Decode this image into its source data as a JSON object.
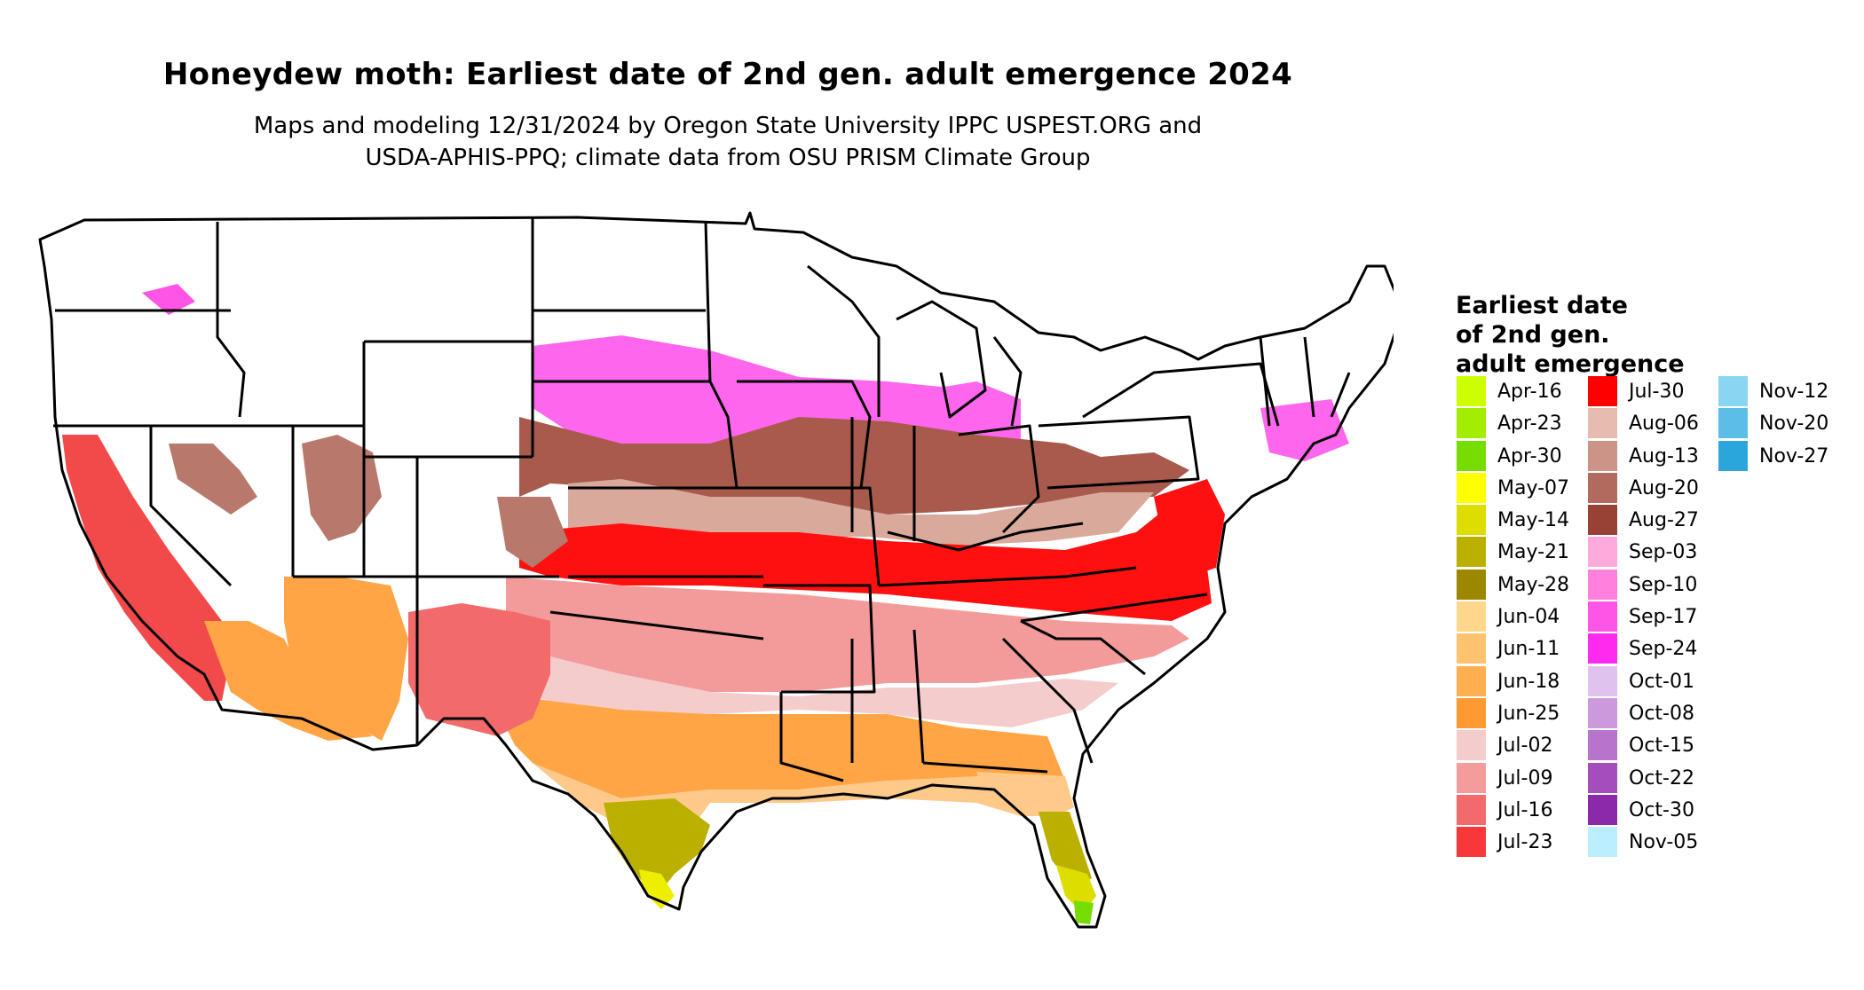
{
  "title": "Honeydew moth: Earliest date of 2nd gen. adult emergence 2024",
  "subtitle_line1": "Maps and modeling 12/31/2024 by Oregon State University IPPC USPEST.ORG and",
  "subtitle_line2": "USDA-APHIS-PPQ; climate data from OSU PRISM Climate Group",
  "legend": {
    "title_lines": [
      "Earliest date",
      "of 2nd gen.",
      "adult emergence"
    ],
    "columns": [
      [
        {
          "label": "Apr-16",
          "color": "#ccff00"
        },
        {
          "label": "Apr-23",
          "color": "#a3ee00"
        },
        {
          "label": "Apr-30",
          "color": "#77dd00"
        },
        {
          "label": "May-07",
          "color": "#ffff00"
        },
        {
          "label": "May-14",
          "color": "#dddd00"
        },
        {
          "label": "May-21",
          "color": "#bbb000"
        },
        {
          "label": "May-28",
          "color": "#9b8800"
        },
        {
          "label": "Jun-04",
          "color": "#ffd78c"
        },
        {
          "label": "Jun-11",
          "color": "#ffc26e"
        },
        {
          "label": "Jun-18",
          "color": "#ffae50"
        },
        {
          "label": "Jun-25",
          "color": "#ff9a32"
        },
        {
          "label": "Jul-02",
          "color": "#f5cccc"
        },
        {
          "label": "Jul-09",
          "color": "#f49c9c"
        },
        {
          "label": "Jul-16",
          "color": "#f26a6a"
        },
        {
          "label": "Jul-23",
          "color": "#f83838"
        }
      ],
      [
        {
          "label": "Jul-30",
          "color": "#ff0000"
        },
        {
          "label": "Aug-06",
          "color": "#e6bcb0"
        },
        {
          "label": "Aug-13",
          "color": "#cc9486"
        },
        {
          "label": "Aug-20",
          "color": "#b26a5e"
        },
        {
          "label": "Aug-27",
          "color": "#984236"
        },
        {
          "label": "Sep-03",
          "color": "#ffaadd"
        },
        {
          "label": "Sep-10",
          "color": "#ff80dd"
        },
        {
          "label": "Sep-17",
          "color": "#ff55e6"
        },
        {
          "label": "Sep-24",
          "color": "#ff2aee"
        },
        {
          "label": "Oct-01",
          "color": "#e0c2ee"
        },
        {
          "label": "Oct-08",
          "color": "#cc99dd"
        },
        {
          "label": "Oct-15",
          "color": "#b873cc"
        },
        {
          "label": "Oct-22",
          "color": "#a44dbb"
        },
        {
          "label": "Oct-30",
          "color": "#8c28aa"
        },
        {
          "label": "Nov-05",
          "color": "#bbeeff"
        }
      ],
      [
        {
          "label": "Nov-12",
          "color": "#88d6f2"
        },
        {
          "label": "Nov-20",
          "color": "#5cbde8"
        },
        {
          "label": "Nov-27",
          "color": "#2aa6dd"
        }
      ]
    ]
  }
}
